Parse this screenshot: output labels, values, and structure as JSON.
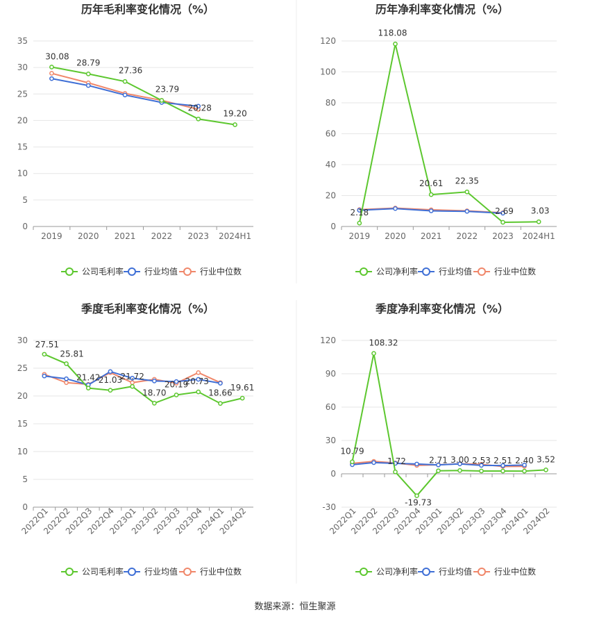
{
  "source": {
    "label": "数据来源：",
    "value": "恒生聚源"
  },
  "colors": {
    "company": "#5cc72e",
    "avg": "#3f6fd6",
    "median": "#f0876a"
  },
  "chart_data": [
    {
      "type": "line",
      "title": "历年毛利率变化情况（%）",
      "categories": [
        "2019",
        "2020",
        "2021",
        "2022",
        "2023",
        "2024H1"
      ],
      "ylim": [
        0,
        35
      ],
      "yticks": [
        0,
        5,
        10,
        15,
        20,
        25,
        30,
        35
      ],
      "grid": true,
      "legend_position": "bottom",
      "series": [
        {
          "name": "公司毛利率",
          "values": [
            30.08,
            28.79,
            27.36,
            23.79,
            20.28,
            19.2
          ],
          "labels": [
            "30.08",
            "28.79",
            "27.36",
            "23.79",
            "20.28",
            "19.20"
          ]
        },
        {
          "name": "行业均值",
          "values": [
            27.9,
            26.6,
            24.8,
            23.4,
            22.7,
            null
          ]
        },
        {
          "name": "行业中位数",
          "values": [
            28.9,
            27.1,
            25.1,
            23.8,
            22.1,
            null
          ]
        }
      ]
    },
    {
      "type": "line",
      "title": "历年净利率变化情况（%）",
      "categories": [
        "2019",
        "2020",
        "2021",
        "2022",
        "2023",
        "2024H1"
      ],
      "ylim": [
        0,
        120
      ],
      "yticks": [
        0,
        20,
        40,
        60,
        80,
        100,
        120
      ],
      "grid": true,
      "legend_position": "bottom",
      "series": [
        {
          "name": "公司净利率",
          "values": [
            2.18,
            118.08,
            20.61,
            22.35,
            2.69,
            3.03
          ],
          "labels": [
            "2.18",
            "118.08",
            "20.61",
            "22.35",
            "2.69",
            "3.03"
          ]
        },
        {
          "name": "行业均值",
          "values": [
            10.5,
            11.6,
            10.1,
            9.8,
            8.6,
            null
          ]
        },
        {
          "name": "行业中位数",
          "values": [
            10.9,
            11.9,
            10.8,
            10.1,
            8.9,
            null
          ]
        }
      ]
    },
    {
      "type": "line",
      "title": "季度毛利率变化情况（%）",
      "categories": [
        "2022Q1",
        "2022Q2",
        "2022Q3",
        "2022Q4",
        "2023Q1",
        "2023Q2",
        "2023Q3",
        "2023Q4",
        "2024Q1",
        "2024Q2"
      ],
      "ylim": [
        0,
        30
      ],
      "yticks": [
        0,
        5,
        10,
        15,
        20,
        25,
        30
      ],
      "grid": true,
      "legend_position": "bottom",
      "series": [
        {
          "name": "公司毛利率",
          "values": [
            27.51,
            25.81,
            21.42,
            21.03,
            21.72,
            18.7,
            20.19,
            20.73,
            18.66,
            19.61
          ],
          "labels": [
            "27.51",
            "25.81",
            "21.42",
            "21.03",
            "21.72",
            "18.70",
            "20.19",
            "20.73",
            "18.66",
            "19.61"
          ]
        },
        {
          "name": "行业均值",
          "values": [
            23.6,
            23.1,
            22.0,
            24.4,
            23.2,
            22.7,
            22.6,
            23.0,
            22.3,
            null
          ]
        },
        {
          "name": "行业中位数",
          "values": [
            23.9,
            22.4,
            22.1,
            24.2,
            22.4,
            23.0,
            22.3,
            24.2,
            22.4,
            null
          ]
        }
      ]
    },
    {
      "type": "line",
      "title": "季度净利率变化情况（%）",
      "categories": [
        "2022Q1",
        "2022Q2",
        "2022Q3",
        "2022Q4",
        "2023Q1",
        "2023Q2",
        "2023Q3",
        "2023Q4",
        "2024Q1",
        "2024Q2"
      ],
      "ylim": [
        -30,
        120
      ],
      "yticks": [
        -30,
        0,
        30,
        60,
        90,
        120
      ],
      "grid": true,
      "legend_position": "bottom",
      "series": [
        {
          "name": "公司净利率",
          "values": [
            10.79,
            108.32,
            1.72,
            -19.73,
            2.71,
            3.0,
            2.53,
            2.51,
            2.4,
            3.52
          ],
          "labels": [
            "10.79",
            "108.32",
            "1.72",
            "-19.73",
            "2.71",
            "3.00",
            "2.53",
            "2.51",
            "2.40",
            "3.52"
          ]
        },
        {
          "name": "行业均值",
          "values": [
            8.2,
            10.1,
            9.4,
            8.8,
            8.0,
            8.9,
            7.6,
            7.4,
            7.9,
            null
          ]
        },
        {
          "name": "行业中位数",
          "values": [
            9.4,
            11.2,
            9.8,
            7.6,
            8.1,
            9.1,
            8.5,
            6.6,
            6.7,
            null
          ]
        }
      ]
    }
  ]
}
